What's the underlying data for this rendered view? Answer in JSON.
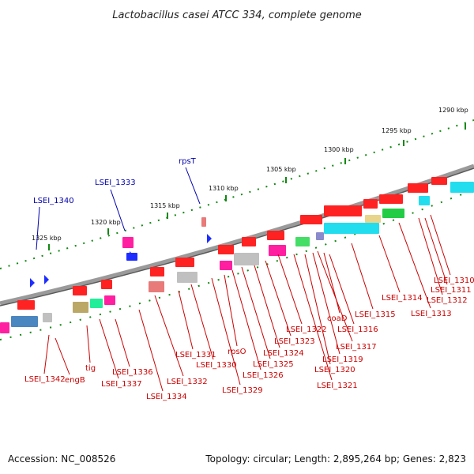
{
  "title": "Lactobacillus casei ATCC 334, complete genome",
  "accession_text": "Accession: NC_008526",
  "topology_text": "Topology: circular; Length: 2,895,264 bp; Genes: 2,823",
  "colors": {
    "backbone": "#888888",
    "forward_gene": "#ff0000",
    "ruler_tick": "#118811",
    "label_red": "#cc0000",
    "label_blue": "#0000b0"
  },
  "ruler_labels": [
    "1290 kbp",
    "1295 kbp",
    "1300 kbp",
    "1305 kbp",
    "1310 kbp",
    "1315 kbp",
    "1320 kbp",
    "1325 kbp"
  ],
  "gene_labels_blue": [
    "LSEI_1340",
    "LSEI_1333",
    "rpsT"
  ],
  "gene_labels_red": [
    "LSEI_1310",
    "LSEI_1311",
    "LSEI_1312",
    "LSEI_1313",
    "LSEI_1314",
    "LSEI_1315",
    "LSEI_1316",
    "coaD",
    "LSEI_1317",
    "LSEI_1319",
    "LSEI_1320",
    "LSEI_1321",
    "LSEI_1322",
    "LSEI_1323",
    "LSEI_1324",
    "LSEI_1325",
    "LSEI_1326",
    "rpsO",
    "LSEI_1329",
    "LSEI_1330",
    "LSEI_1331",
    "LSEI_1332",
    "LSEI_1334",
    "LSEI_1336",
    "LSEI_1337",
    "tig",
    "engB",
    "LSEI_1342"
  ]
}
